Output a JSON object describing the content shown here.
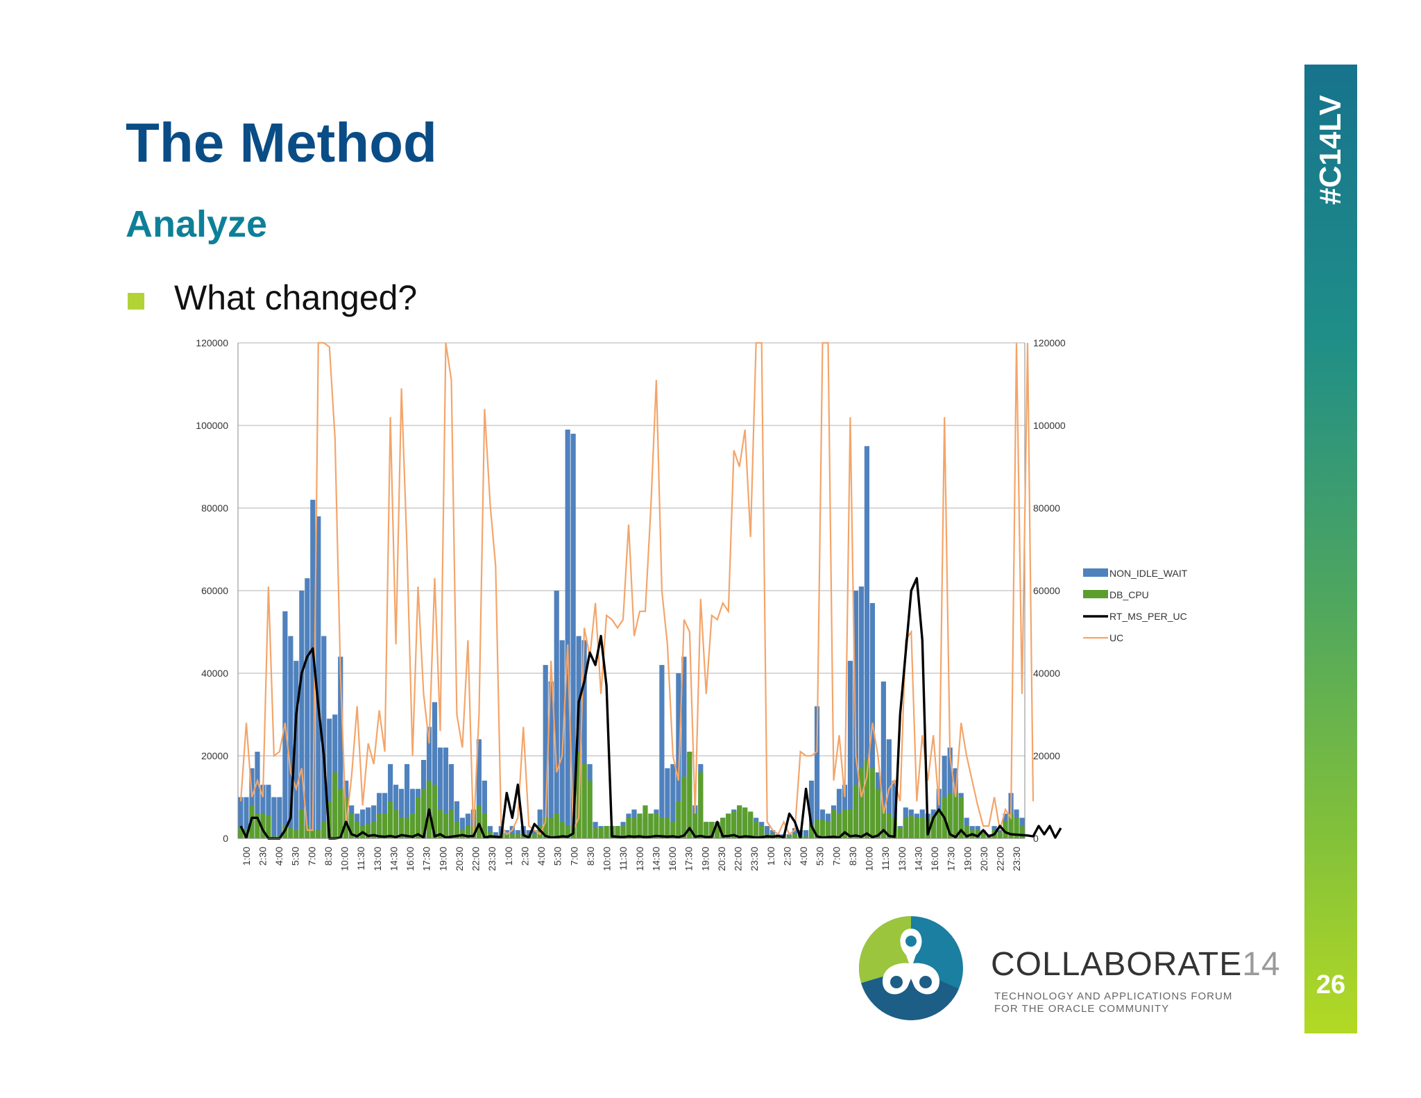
{
  "slide": {
    "title": "The Method",
    "subtitle": "Analyze",
    "bullet": "What changed?",
    "hashtag": "#C14LV",
    "page_number": "26",
    "brand": {
      "name": "COLLABORATE",
      "number": "14",
      "tagline1": "TECHNOLOGY AND APPLICATIONS FORUM",
      "tagline2": "FOR THE ORACLE COMMUNITY"
    },
    "colors": {
      "title": "#0a4d86",
      "subtitle": "#0d8098",
      "bullet": "#b2d235",
      "non_idle_wait": "#4f81bd",
      "db_cpu": "#5b9e2d",
      "rt_ms_per_uc": "#000000",
      "uc": "#f3a56a"
    }
  },
  "chart_data": {
    "type": "bar",
    "title": "",
    "xlabel": "",
    "ylabel": "",
    "ylim": [
      0,
      120000
    ],
    "y2lim": [
      0,
      120000
    ],
    "yticks": [
      "0",
      "20000",
      "40000",
      "60000",
      "80000",
      "100000",
      "120000"
    ],
    "grid": true,
    "legend_position": "right",
    "x_labels": [
      "1:00",
      "2:30",
      "4:00",
      "5:30",
      "7:00",
      "8:30",
      "10:00",
      "11:30",
      "13:00",
      "14:30",
      "16:00",
      "17:30",
      "19:00",
      "20:30",
      "22:00",
      "23:30",
      "1:00",
      "2:30",
      "4:00",
      "5:30",
      "7:00",
      "8:30",
      "10:00",
      "11:30",
      "13:00",
      "14:30",
      "16:00",
      "17:30",
      "19:00",
      "20:30",
      "22:00",
      "23:30",
      "1:00",
      "2:30",
      "4:00",
      "5:30",
      "7:00",
      "8:30",
      "10:00",
      "11:30",
      "13:00",
      "14:30",
      "16:00",
      "17:30",
      "19:00",
      "20:30",
      "22:00",
      "23:30"
    ],
    "series": [
      {
        "name": "NON_IDLE_WAIT",
        "type": "bar",
        "values": [
          10000,
          10000,
          17000,
          21000,
          13000,
          13000,
          10000,
          10000,
          55000,
          49000,
          43000,
          60000,
          63000,
          82000,
          78000,
          49000,
          29000,
          30000,
          44000,
          14000,
          8000,
          6000,
          7000,
          7500,
          8000,
          11000,
          11000,
          18000,
          13000,
          12000,
          18000,
          12000,
          12000,
          19000,
          27000,
          33000,
          22000,
          22000,
          18000,
          9000,
          5000,
          6000,
          7000,
          24000,
          14000,
          3000,
          1500,
          3000,
          2000,
          3000,
          2000,
          3000,
          2000,
          2000,
          7000,
          42000,
          38000,
          60000,
          48000,
          99000,
          98000,
          49000,
          48000,
          18000,
          4000,
          3000,
          3000,
          3000,
          3000,
          4000,
          6000,
          7000,
          6000,
          5000,
          6000,
          7000,
          42000,
          17000,
          18000,
          40000,
          44000,
          21000,
          8000,
          18000,
          4000,
          4000,
          4000,
          5000,
          6000,
          7000,
          8000,
          7000,
          6000,
          5000,
          4000,
          3000,
          2000,
          1000,
          1000,
          1000,
          2500,
          2000,
          2000,
          14000,
          32000,
          7000,
          6000,
          8000,
          12000,
          13000,
          43000,
          60000,
          61000,
          95000,
          57000,
          16000,
          38000,
          24000,
          14000,
          3000,
          7500,
          7000,
          6000,
          7000,
          6000,
          7000,
          12000,
          20000,
          22000,
          17000,
          11000,
          5000,
          3000,
          3000,
          2000,
          1000,
          3000,
          2000,
          6000,
          11000,
          7000,
          5000
        ]
      },
      {
        "name": "DB_CPU",
        "type": "bar",
        "values": [
          2500,
          2000,
          8000,
          6000,
          6000,
          5500,
          500,
          500,
          3000,
          2500,
          2000,
          7000,
          3000,
          2000,
          2000,
          4000,
          9000,
          16000,
          12000,
          10000,
          6000,
          4000,
          3000,
          3500,
          4000,
          6000,
          6000,
          9000,
          7000,
          5000,
          5000,
          6000,
          10000,
          12000,
          14000,
          13000,
          7000,
          6000,
          7000,
          4000,
          2000,
          3000,
          3000,
          8000,
          6000,
          1500,
          500,
          1000,
          1000,
          1000,
          1000,
          1000,
          1000,
          1000,
          3000,
          5000,
          5000,
          6000,
          4000,
          3000,
          3000,
          21000,
          18000,
          14000,
          2500,
          2500,
          3000,
          3000,
          3000,
          3000,
          5000,
          5000,
          6000,
          8000,
          6000,
          6000,
          5000,
          5000,
          4000,
          9000,
          15000,
          21000,
          6000,
          16000,
          4000,
          4000,
          4000,
          5000,
          6000,
          6500,
          8000,
          7500,
          6500,
          4000,
          3000,
          1000,
          1000,
          500,
          500,
          500,
          1000,
          500,
          500,
          3000,
          4500,
          4500,
          4000,
          7000,
          6000,
          7000,
          7000,
          13000,
          17000,
          19000,
          17000,
          12000,
          8000,
          6000,
          5000,
          2500,
          5000,
          5500,
          5000,
          5000,
          4500,
          5500,
          7000,
          10000,
          11000,
          11000,
          10000,
          3000,
          2000,
          2000,
          1500,
          500,
          2000,
          1500,
          4000,
          6000,
          5000,
          3000
        ]
      },
      {
        "name": "RT_MS_PER_UC",
        "type": "line",
        "values": [
          3000,
          200,
          5000,
          5000,
          2000,
          0,
          0,
          0,
          2000,
          5000,
          30000,
          40000,
          44000,
          46000,
          32000,
          20000,
          0,
          0,
          200,
          4000,
          1000,
          500,
          1500,
          600,
          800,
          500,
          400,
          600,
          300,
          800,
          600,
          400,
          1000,
          200,
          7000,
          500,
          1000,
          200,
          400,
          600,
          800,
          500,
          600,
          3500,
          200,
          500,
          400,
          300,
          11000,
          5000,
          13000,
          800,
          200,
          3500,
          2000,
          600,
          200,
          300,
          500,
          400,
          1200,
          33000,
          38000,
          45000,
          42000,
          49000,
          37000,
          500,
          400,
          300,
          500,
          400,
          500,
          300,
          400,
          600,
          500,
          400,
          500,
          300,
          700,
          2500,
          400,
          600,
          300,
          400,
          4000,
          500,
          600,
          800,
          300,
          500,
          400,
          200,
          300,
          500,
          400,
          600,
          300,
          6000,
          4000,
          200,
          12000,
          3000,
          500,
          200,
          300,
          400,
          200,
          1500,
          500,
          700,
          400,
          1200,
          300,
          700,
          2000,
          600,
          400,
          30000,
          45000,
          60000,
          63000,
          48000,
          1000,
          5000,
          7000,
          5000,
          1000,
          300,
          2000,
          500,
          1000,
          500,
          2000,
          500,
          1000,
          3000,
          1500,
          1000,
          900,
          800,
          700,
          500,
          3000,
          1000,
          3000,
          200,
          2500
        ]
      },
      {
        "name": "UC",
        "type": "line",
        "values": [
          9000,
          28000,
          10000,
          14000,
          10000,
          61000,
          20000,
          21000,
          28000,
          16000,
          12000,
          17000,
          2000,
          2000,
          120000,
          120000,
          119000,
          97000,
          40000,
          3000,
          15000,
          32000,
          8000,
          23000,
          18000,
          31000,
          21000,
          102000,
          47000,
          109000,
          70000,
          20000,
          61000,
          35000,
          23000,
          63000,
          26000,
          120000,
          111000,
          30000,
          22000,
          48000,
          1000,
          30000,
          104000,
          81000,
          66000,
          3000,
          1000,
          2000,
          5000,
          27000,
          3000,
          2000,
          1000,
          4000,
          43000,
          16000,
          20000,
          47000,
          2000,
          5000,
          51000,
          44000,
          57000,
          35000,
          54000,
          53000,
          51000,
          53000,
          76000,
          49000,
          55000,
          55000,
          80000,
          111000,
          60000,
          47000,
          20000,
          14000,
          53000,
          50000,
          6000,
          58000,
          35000,
          54000,
          53000,
          57000,
          55000,
          94000,
          90000,
          99000,
          73000,
          120000,
          120000,
          4000,
          2000,
          1000,
          4000,
          1000,
          2000,
          21000,
          20000,
          20000,
          21000,
          120000,
          120000,
          14000,
          25000,
          10000,
          102000,
          20000,
          10000,
          15000,
          28000,
          20000,
          6000,
          12000,
          14000,
          9000,
          48000,
          50000,
          9000,
          25000,
          14000,
          25000,
          8000,
          102000,
          20000,
          10000,
          28000,
          20000,
          14000,
          8000,
          3000,
          3000,
          10000,
          2000,
          7000,
          5000,
          120000,
          35000,
          120000,
          9000
        ]
      }
    ]
  }
}
